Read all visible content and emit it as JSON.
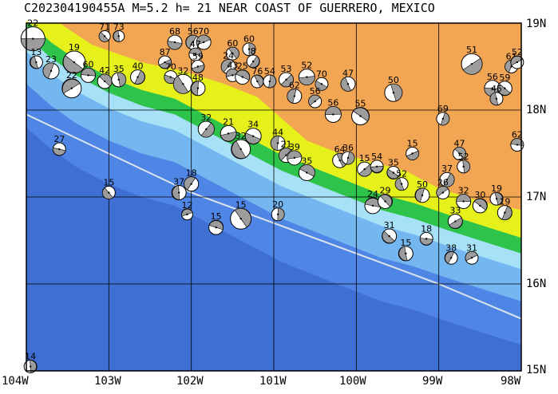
{
  "title": "C202304190455A M=5.2 h= 21 NEAR COAST OF GUERRERO, MEXICO",
  "lon_range": [
    -104,
    -98
  ],
  "lat_range": [
    15,
    19
  ],
  "axes": {
    "lon_labels": [
      "104W",
      "103W",
      "102W",
      "101W",
      "100W",
      "99W",
      "98W"
    ],
    "lat_labels": [
      "19N",
      "18N",
      "17N",
      "16N",
      "15N"
    ]
  },
  "colors": {
    "deep_ocean": "#3f6fd3",
    "mid_ocean": "#4f86e6",
    "shelf": "#74b6f0",
    "shallow": "#a7e1f7",
    "lowland": "#2ec34b",
    "hills": "#e6f01a",
    "highland": "#f2a553",
    "trench_line": "#dde4ee",
    "grid": "#000000",
    "compression": "#9c9c9c"
  },
  "events": [
    {
      "lon": -103.92,
      "lat": 18.82,
      "depth": "22",
      "size": 15
    },
    {
      "lon": -103.42,
      "lat": 18.55,
      "depth": "19",
      "size": 14
    },
    {
      "lon": -103.88,
      "lat": 18.55,
      "depth": "13",
      "size": 8
    },
    {
      "lon": -103.7,
      "lat": 18.45,
      "depth": "23",
      "size": 10
    },
    {
      "lon": -103.45,
      "lat": 18.25,
      "depth": "22",
      "size": 12
    },
    {
      "lon": -103.25,
      "lat": 18.4,
      "depth": "60",
      "size": 9
    },
    {
      "lon": -103.05,
      "lat": 18.33,
      "depth": "42",
      "size": 9
    },
    {
      "lon": -102.88,
      "lat": 18.35,
      "depth": "35",
      "size": 9
    },
    {
      "lon": -102.65,
      "lat": 18.38,
      "depth": "40",
      "size": 9
    },
    {
      "lon": -102.32,
      "lat": 18.55,
      "depth": "87",
      "size": 8
    },
    {
      "lon": -102.2,
      "lat": 18.78,
      "depth": "68",
      "size": 9
    },
    {
      "lon": -103.05,
      "lat": 18.85,
      "depth": "71",
      "size": 7
    },
    {
      "lon": -102.88,
      "lat": 18.85,
      "depth": "73",
      "size": 7
    },
    {
      "lon": -101.98,
      "lat": 18.78,
      "depth": "56",
      "size": 9
    },
    {
      "lon": -101.85,
      "lat": 18.78,
      "depth": "70",
      "size": 9
    },
    {
      "lon": -101.95,
      "lat": 18.64,
      "depth": "47",
      "size": 8
    },
    {
      "lon": -101.5,
      "lat": 18.65,
      "depth": "60",
      "size": 8
    },
    {
      "lon": -101.3,
      "lat": 18.7,
      "depth": "60",
      "size": 8
    },
    {
      "lon": -101.25,
      "lat": 18.56,
      "depth": "8",
      "size": 8
    },
    {
      "lon": -101.92,
      "lat": 18.5,
      "depth": "59",
      "size": 8
    },
    {
      "lon": -102.25,
      "lat": 18.38,
      "depth": "70",
      "size": 8
    },
    {
      "lon": -102.1,
      "lat": 18.3,
      "depth": "32",
      "size": 12
    },
    {
      "lon": -101.92,
      "lat": 18.25,
      "depth": "48",
      "size": 9
    },
    {
      "lon": -101.55,
      "lat": 18.5,
      "depth": "24",
      "size": 9
    },
    {
      "lon": -101.5,
      "lat": 18.4,
      "depth": "43",
      "size": 8
    },
    {
      "lon": -101.38,
      "lat": 18.38,
      "depth": "25",
      "size": 9
    },
    {
      "lon": -101.2,
      "lat": 18.33,
      "depth": "76",
      "size": 8
    },
    {
      "lon": -101.05,
      "lat": 18.33,
      "depth": "54",
      "size": 8
    },
    {
      "lon": -100.85,
      "lat": 18.35,
      "depth": "53",
      "size": 9
    },
    {
      "lon": -100.6,
      "lat": 18.38,
      "depth": "52",
      "size": 10
    },
    {
      "lon": -100.42,
      "lat": 18.3,
      "depth": "70",
      "size": 8
    },
    {
      "lon": -100.1,
      "lat": 18.3,
      "depth": "47",
      "size": 9
    },
    {
      "lon": -100.75,
      "lat": 18.16,
      "depth": "62",
      "size": 9
    },
    {
      "lon": -100.5,
      "lat": 18.1,
      "depth": "56",
      "size": 8
    },
    {
      "lon": -100.28,
      "lat": 17.95,
      "depth": "56",
      "size": 10
    },
    {
      "lon": -99.95,
      "lat": 17.93,
      "depth": "55",
      "size": 11
    },
    {
      "lon": -99.55,
      "lat": 18.2,
      "depth": "50",
      "size": 11
    },
    {
      "lon": -98.95,
      "lat": 17.9,
      "depth": "69",
      "size": 8
    },
    {
      "lon": -98.6,
      "lat": 18.53,
      "depth": "51",
      "size": 13
    },
    {
      "lon": -98.35,
      "lat": 18.25,
      "depth": "56",
      "size": 10
    },
    {
      "lon": -98.2,
      "lat": 18.25,
      "depth": "59",
      "size": 9
    },
    {
      "lon": -98.3,
      "lat": 18.13,
      "depth": "45",
      "size": 8
    },
    {
      "lon": -98.12,
      "lat": 18.5,
      "depth": "61",
      "size": 8
    },
    {
      "lon": -98.05,
      "lat": 18.55,
      "depth": "52",
      "size": 8
    },
    {
      "lon": -98.05,
      "lat": 17.6,
      "depth": "62",
      "size": 8
    },
    {
      "lon": -98.75,
      "lat": 17.5,
      "depth": "47",
      "size": 8
    },
    {
      "lon": -98.7,
      "lat": 17.35,
      "depth": "52",
      "size": 8
    },
    {
      "lon": -98.9,
      "lat": 17.2,
      "depth": "37",
      "size": 9
    },
    {
      "lon": -99.32,
      "lat": 17.5,
      "depth": "15",
      "size": 8
    },
    {
      "lon": -103.6,
      "lat": 17.55,
      "depth": "27",
      "size": 8
    },
    {
      "lon": -103.0,
      "lat": 17.05,
      "depth": "15",
      "size": 8
    },
    {
      "lon": -102.15,
      "lat": 17.05,
      "depth": "37",
      "size": 9
    },
    {
      "lon": -102.0,
      "lat": 17.15,
      "depth": "18",
      "size": 9
    },
    {
      "lon": -102.05,
      "lat": 16.8,
      "depth": "12",
      "size": 7
    },
    {
      "lon": -101.7,
      "lat": 16.65,
      "depth": "15",
      "size": 9
    },
    {
      "lon": -101.4,
      "lat": 16.75,
      "depth": "15",
      "size": 13
    },
    {
      "lon": -100.95,
      "lat": 16.8,
      "depth": "20",
      "size": 8
    },
    {
      "lon": -101.82,
      "lat": 17.78,
      "depth": "32",
      "size": 10
    },
    {
      "lon": -101.55,
      "lat": 17.73,
      "depth": "21",
      "size": 10
    },
    {
      "lon": -101.25,
      "lat": 17.7,
      "depth": "34",
      "size": 10
    },
    {
      "lon": -101.4,
      "lat": 17.55,
      "depth": "32",
      "size": 12
    },
    {
      "lon": -100.95,
      "lat": 17.62,
      "depth": "44",
      "size": 9
    },
    {
      "lon": -100.85,
      "lat": 17.48,
      "depth": "21",
      "size": 9
    },
    {
      "lon": -100.75,
      "lat": 17.45,
      "depth": "39",
      "size": 9
    },
    {
      "lon": -100.6,
      "lat": 17.28,
      "depth": "35",
      "size": 10
    },
    {
      "lon": -100.2,
      "lat": 17.42,
      "depth": "64",
      "size": 9
    },
    {
      "lon": -100.1,
      "lat": 17.45,
      "depth": "36",
      "size": 8
    },
    {
      "lon": -99.9,
      "lat": 17.32,
      "depth": "15",
      "size": 9
    },
    {
      "lon": -99.75,
      "lat": 17.35,
      "depth": "54",
      "size": 8
    },
    {
      "lon": -99.55,
      "lat": 17.28,
      "depth": "35",
      "size": 8
    },
    {
      "lon": -99.45,
      "lat": 17.15,
      "depth": "52",
      "size": 8
    },
    {
      "lon": -99.2,
      "lat": 17.02,
      "depth": "50",
      "size": 9
    },
    {
      "lon": -98.95,
      "lat": 17.05,
      "depth": "26",
      "size": 8
    },
    {
      "lon": -98.7,
      "lat": 16.95,
      "depth": "32",
      "size": 9
    },
    {
      "lon": -98.5,
      "lat": 16.9,
      "depth": "30",
      "size": 9
    },
    {
      "lon": -98.3,
      "lat": 16.98,
      "depth": "19",
      "size": 8
    },
    {
      "lon": -98.2,
      "lat": 16.82,
      "depth": "19",
      "size": 9
    },
    {
      "lon": -98.8,
      "lat": 16.72,
      "depth": "33",
      "size": 9
    },
    {
      "lon": -99.15,
      "lat": 16.52,
      "depth": "18",
      "size": 8
    },
    {
      "lon": -99.6,
      "lat": 16.55,
      "depth": "31",
      "size": 9
    },
    {
      "lon": -99.4,
      "lat": 16.35,
      "depth": "15",
      "size": 9
    },
    {
      "lon": -98.85,
      "lat": 16.3,
      "depth": "38",
      "size": 8
    },
    {
      "lon": -98.6,
      "lat": 16.3,
      "depth": "31",
      "size": 8
    },
    {
      "lon": -99.8,
      "lat": 16.9,
      "depth": "24",
      "size": 10
    },
    {
      "lon": -99.65,
      "lat": 16.95,
      "depth": "29",
      "size": 9
    },
    {
      "lon": -103.95,
      "lat": 15.05,
      "depth": "14",
      "size": 8
    }
  ]
}
